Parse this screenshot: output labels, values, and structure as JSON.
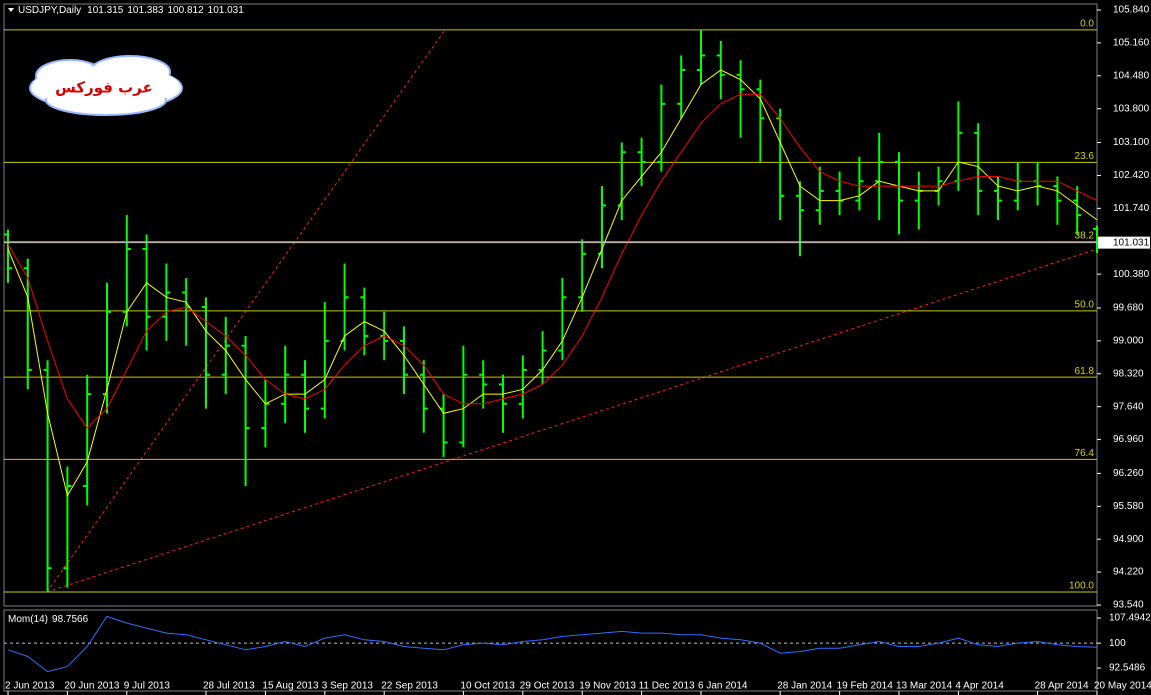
{
  "chart_data": [
    {
      "type": "ohlc",
      "title": "USDJPY,Daily",
      "watermark": "عرب فوركس",
      "categories": [
        "2 Jun 2013",
        null,
        null,
        "20 Jun 2013",
        null,
        null,
        "9 Jul 2013",
        null,
        null,
        null,
        "28 Jul 2013",
        null,
        null,
        "15 Aug 2013",
        null,
        null,
        "3 Sep 2013",
        null,
        null,
        "22 Sep 2013",
        null,
        null,
        null,
        "10 Oct 2013",
        null,
        null,
        "29 Oct 2013",
        null,
        null,
        "19 Nov 2013",
        null,
        null,
        "11 Dec 2013",
        null,
        null,
        "6 Jan 2014",
        null,
        null,
        null,
        "28 Jan 2014",
        null,
        null,
        "19 Feb 2014",
        null,
        null,
        "13 Mar 2014",
        null,
        null,
        "4 Apr 2014",
        null,
        null,
        null,
        "28 Apr 2014",
        null,
        null,
        "20 May 2014"
      ],
      "open": [
        101.2,
        100.5,
        98.4,
        94.3,
        96.0,
        97.9,
        99.6,
        100.9,
        99.5,
        100.0,
        99.7,
        98.3,
        98.9,
        97.2,
        97.7,
        98.3,
        97.6,
        99.0,
        99.9,
        99.1,
        99.0,
        98.3,
        97.6,
        96.9,
        98.3,
        98.1,
        97.7,
        98.4,
        98.8,
        99.9,
        100.8,
        101.8,
        102.9,
        102.7,
        103.9,
        104.6,
        104.9,
        104.5,
        104.2,
        103.6,
        102.0,
        101.7,
        102.1,
        101.9,
        102.3,
        102.7,
        101.9,
        102.1,
        102.3,
        103.3,
        102.1,
        101.9,
        102.3,
        102.2,
        101.9,
        101.315
      ],
      "high": [
        101.3,
        100.7,
        98.6,
        96.4,
        98.3,
        100.2,
        101.6,
        101.2,
        100.6,
        100.3,
        99.9,
        99.5,
        99.1,
        98.2,
        98.9,
        98.6,
        99.8,
        100.6,
        100.1,
        99.6,
        99.3,
        98.6,
        97.9,
        98.9,
        98.6,
        98.3,
        98.7,
        99.2,
        100.3,
        101.1,
        102.2,
        103.1,
        103.2,
        104.3,
        104.9,
        105.43,
        105.2,
        104.8,
        104.4,
        103.8,
        102.3,
        102.6,
        102.5,
        102.8,
        103.3,
        102.9,
        102.5,
        102.6,
        103.95,
        103.5,
        102.4,
        102.7,
        102.7,
        102.4,
        102.2,
        101.383
      ],
      "low": [
        100.2,
        98.0,
        93.81,
        93.9,
        95.6,
        97.5,
        99.3,
        98.8,
        99.0,
        98.9,
        97.6,
        97.9,
        96.0,
        96.8,
        97.3,
        97.1,
        97.4,
        98.8,
        98.7,
        98.6,
        97.9,
        97.1,
        96.6,
        96.8,
        97.6,
        97.1,
        97.4,
        98.1,
        98.6,
        99.6,
        100.5,
        101.5,
        102.2,
        102.5,
        103.6,
        104.3,
        104.0,
        103.2,
        102.7,
        101.5,
        100.75,
        101.4,
        101.6,
        101.7,
        101.5,
        101.2,
        101.3,
        101.8,
        102.1,
        101.6,
        101.5,
        101.7,
        101.8,
        101.4,
        101.2,
        100.812
      ],
      "close": [
        100.5,
        98.4,
        94.3,
        96.0,
        97.9,
        99.6,
        100.9,
        99.5,
        100.0,
        99.7,
        98.3,
        98.9,
        97.2,
        97.7,
        98.3,
        97.6,
        99.0,
        99.9,
        99.1,
        99.0,
        98.3,
        97.6,
        96.9,
        98.3,
        98.1,
        97.7,
        98.4,
        98.8,
        99.9,
        100.8,
        101.8,
        102.9,
        102.7,
        103.9,
        104.6,
        104.9,
        104.5,
        104.2,
        103.6,
        102.0,
        101.7,
        102.1,
        101.9,
        102.3,
        102.7,
        101.9,
        102.1,
        102.3,
        103.3,
        102.1,
        101.9,
        102.3,
        102.2,
        101.9,
        101.6,
        101.031
      ],
      "color": "#00ff00",
      "overlays": [
        {
          "color": "#ffff00",
          "values": [
            100.9,
            99.9,
            97.5,
            95.8,
            96.5,
            98.0,
            99.6,
            100.2,
            99.9,
            99.8,
            99.2,
            98.8,
            98.2,
            97.7,
            97.9,
            97.9,
            98.2,
            99.1,
            99.4,
            99.2,
            98.7,
            98.1,
            97.5,
            97.6,
            97.9,
            97.9,
            98.0,
            98.4,
            99.0,
            99.9,
            100.9,
            101.9,
            102.4,
            102.9,
            103.6,
            104.3,
            104.6,
            104.4,
            104.0,
            103.1,
            102.2,
            101.9,
            101.9,
            102.0,
            102.3,
            102.2,
            102.1,
            102.1,
            102.7,
            102.6,
            102.2,
            102.1,
            102.2,
            102.1,
            101.8,
            101.5
          ]
        },
        {
          "color": "#ff0000",
          "values": [
            101.0,
            100.3,
            99.0,
            97.8,
            97.2,
            97.6,
            98.4,
            99.2,
            99.6,
            99.7,
            99.4,
            99.1,
            98.7,
            98.2,
            97.9,
            97.8,
            98.0,
            98.5,
            98.9,
            99.1,
            98.9,
            98.5,
            97.9,
            97.7,
            97.7,
            97.8,
            97.9,
            98.1,
            98.5,
            99.1,
            99.9,
            100.8,
            101.6,
            102.3,
            102.9,
            103.5,
            103.9,
            104.1,
            104.1,
            103.6,
            103.0,
            102.5,
            102.3,
            102.2,
            102.2,
            102.2,
            102.2,
            102.2,
            102.3,
            102.4,
            102.4,
            102.3,
            102.3,
            102.3,
            102.1,
            101.9
          ]
        }
      ],
      "fib": {
        "color": "#c8c800",
        "levels": [
          105.43,
          102.69,
          101.05,
          99.62,
          98.25,
          96.55,
          93.81
        ],
        "labels": [
          "0.0",
          "23.6",
          "38.2",
          "50.0",
          "61.8",
          "76.4",
          "100.0"
        ]
      },
      "ylim": [
        93.54,
        105.84
      ],
      "yticks": [
        {
          "value": 105.84,
          "label": "105.840"
        },
        {
          "value": 105.16,
          "label": "105.160"
        },
        {
          "value": 104.48,
          "label": "104.480"
        },
        {
          "value": 103.8,
          "label": "103.800"
        },
        {
          "value": 103.1,
          "label": "103.100"
        },
        {
          "value": 102.42,
          "label": "102.420"
        },
        {
          "value": 101.74,
          "label": "101.740"
        },
        {
          "value": 100.38,
          "label": "100.380"
        },
        {
          "value": 99.68,
          "label": "99.680"
        },
        {
          "value": 99.0,
          "label": "99.000"
        },
        {
          "value": 98.32,
          "label": "98.320"
        },
        {
          "value": 97.64,
          "label": "97.640"
        },
        {
          "value": 96.96,
          "label": "96.960"
        },
        {
          "value": 96.26,
          "label": "96.260"
        },
        {
          "value": 95.58,
          "label": "95.580"
        },
        {
          "value": 94.9,
          "label": "94.900"
        },
        {
          "value": 94.22,
          "label": "94.220"
        },
        {
          "value": 93.54,
          "label": "93.540"
        }
      ]
    },
    {
      "type": "line",
      "title": "Mom(14)",
      "color": "#2f6fff",
      "values": [
        98.0,
        96.0,
        91.5,
        93.0,
        99.0,
        108.0,
        106.0,
        104.5,
        103.0,
        102.5,
        101.0,
        99.5,
        98.0,
        99.0,
        100.5,
        99.0,
        101.5,
        102.5,
        101.0,
        100.5,
        99.0,
        98.5,
        98.0,
        99.5,
        100.0,
        99.5,
        100.5,
        101.0,
        102.0,
        102.5,
        103.0,
        103.5,
        103.0,
        103.0,
        102.5,
        102.5,
        101.5,
        101.0,
        100.0,
        97.0,
        97.5,
        98.5,
        98.5,
        99.5,
        100.5,
        99.0,
        99.0,
        100.0,
        101.5,
        99.5,
        99.0,
        100.0,
        100.5,
        99.5,
        99.0,
        98.7566
      ],
      "ylim": [
        86,
        109.6
      ],
      "yticks": [
        107.4942,
        100,
        92.5486
      ],
      "levels": [
        100
      ]
    }
  ]
}
